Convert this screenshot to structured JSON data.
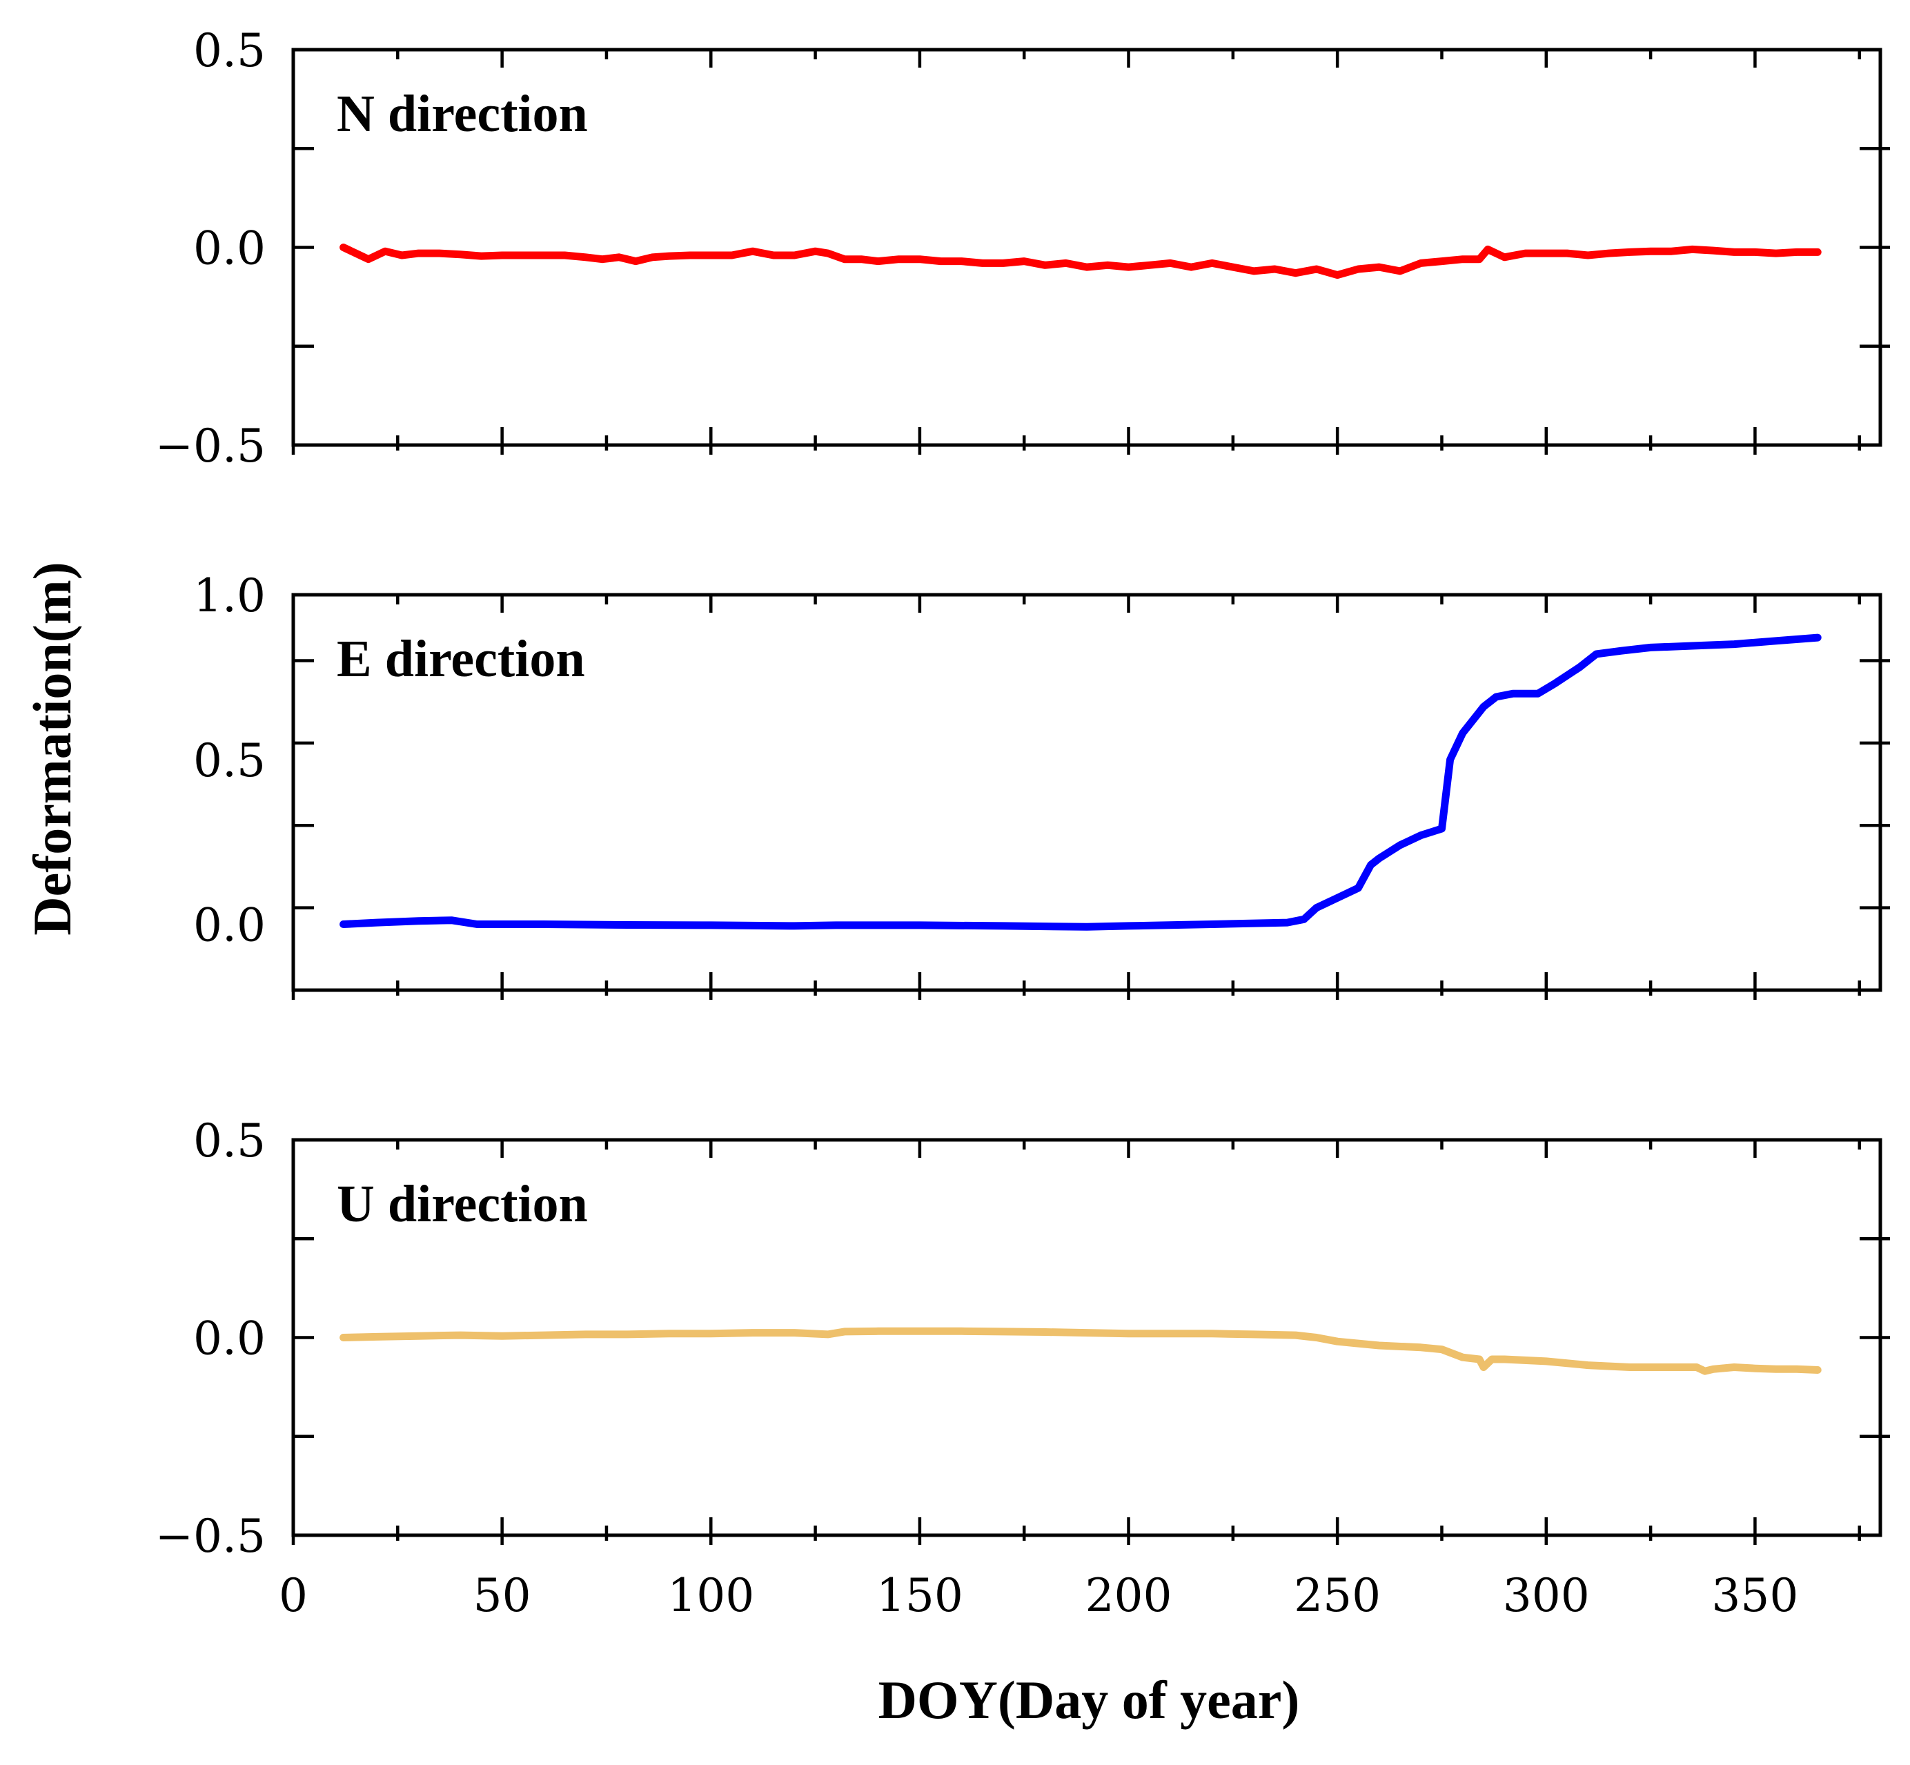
{
  "chart_data": {
    "type": "line",
    "xlabel": "DOY(Day of year)",
    "ylabel": "Deformation(m)",
    "xlim": [
      0,
      380
    ],
    "x_ticks": [
      0,
      50,
      100,
      150,
      200,
      250,
      300,
      350
    ],
    "x_tick_labels": [
      "0",
      "50",
      "100",
      "150",
      "200",
      "250",
      "300",
      "350"
    ],
    "panels": [
      {
        "id": "n",
        "label": "N direction",
        "ylim": [
          -0.5,
          0.5
        ],
        "y_ticks": [
          -0.5,
          0.0,
          0.5
        ],
        "y_tick_labels": [
          "−0.5",
          "0.0",
          "0.5"
        ],
        "color": "#ff0000",
        "x": [
          12,
          15,
          18,
          22,
          26,
          30,
          35,
          40,
          45,
          50,
          55,
          60,
          65,
          70,
          74,
          78,
          82,
          86,
          90,
          95,
          100,
          105,
          110,
          115,
          120,
          125,
          128,
          132,
          136,
          140,
          145,
          150,
          155,
          160,
          165,
          170,
          175,
          180,
          185,
          190,
          195,
          200,
          205,
          210,
          215,
          220,
          225,
          230,
          235,
          240,
          245,
          250,
          255,
          260,
          265,
          270,
          275,
          280,
          284,
          286,
          290,
          295,
          300,
          305,
          310,
          315,
          320,
          325,
          330,
          335,
          340,
          345,
          350,
          355,
          360,
          365
        ],
        "values": [
          0.0,
          -0.015,
          -0.03,
          -0.01,
          -0.02,
          -0.015,
          -0.015,
          -0.018,
          -0.022,
          -0.02,
          -0.02,
          -0.02,
          -0.02,
          -0.025,
          -0.03,
          -0.025,
          -0.035,
          -0.025,
          -0.022,
          -0.02,
          -0.02,
          -0.02,
          -0.01,
          -0.02,
          -0.02,
          -0.01,
          -0.015,
          -0.03,
          -0.03,
          -0.035,
          -0.03,
          -0.03,
          -0.035,
          -0.035,
          -0.04,
          -0.04,
          -0.035,
          -0.045,
          -0.04,
          -0.05,
          -0.045,
          -0.05,
          -0.045,
          -0.04,
          -0.05,
          -0.04,
          -0.05,
          -0.06,
          -0.055,
          -0.065,
          -0.055,
          -0.07,
          -0.055,
          -0.05,
          -0.06,
          -0.04,
          -0.035,
          -0.03,
          -0.03,
          -0.005,
          -0.025,
          -0.015,
          -0.015,
          -0.015,
          -0.02,
          -0.015,
          -0.012,
          -0.01,
          -0.01,
          -0.005,
          -0.008,
          -0.012,
          -0.012,
          -0.015,
          -0.012,
          -0.012
        ]
      },
      {
        "id": "e",
        "label": "E direction",
        "ylim": [
          -0.2,
          1.0
        ],
        "y_ticks": [
          0.0,
          0.5,
          1.0
        ],
        "y_tick_labels": [
          "0.0",
          "0.5",
          "1.0"
        ],
        "color": "#0000ff",
        "x": [
          12,
          20,
          30,
          38,
          44,
          60,
          80,
          100,
          120,
          130,
          150,
          170,
          190,
          200,
          220,
          238,
          242,
          245,
          250,
          255,
          258,
          260,
          265,
          270,
          275,
          277,
          280,
          285,
          288,
          292,
          298,
          302,
          308,
          312,
          318,
          325,
          335,
          345,
          355,
          365
        ],
        "values": [
          0.0,
          0.005,
          0.01,
          0.012,
          0.0,
          0.0,
          -0.002,
          -0.003,
          -0.005,
          -0.003,
          -0.003,
          -0.005,
          -0.008,
          -0.005,
          0.0,
          0.005,
          0.015,
          0.05,
          0.08,
          0.11,
          0.18,
          0.2,
          0.24,
          0.27,
          0.29,
          0.5,
          0.58,
          0.66,
          0.69,
          0.7,
          0.7,
          0.73,
          0.78,
          0.82,
          0.83,
          0.84,
          0.845,
          0.85,
          0.86,
          0.87
        ]
      },
      {
        "id": "u",
        "label": "U direction",
        "ylim": [
          -0.5,
          0.5
        ],
        "y_ticks": [
          -0.5,
          0.0,
          0.5
        ],
        "y_tick_labels": [
          "−0.5",
          "0.0",
          "0.5"
        ],
        "color": "#eec06b",
        "x": [
          12,
          20,
          30,
          40,
          50,
          60,
          70,
          80,
          90,
          100,
          110,
          120,
          128,
          132,
          140,
          150,
          160,
          170,
          180,
          190,
          200,
          210,
          220,
          230,
          240,
          245,
          250,
          255,
          260,
          270,
          275,
          280,
          284,
          285,
          287,
          290,
          300,
          310,
          320,
          330,
          336,
          338,
          340,
          345,
          350,
          355,
          360,
          365
        ],
        "values": [
          0.0,
          0.002,
          0.004,
          0.006,
          0.004,
          0.006,
          0.008,
          0.008,
          0.01,
          0.01,
          0.012,
          0.012,
          0.008,
          0.015,
          0.016,
          0.016,
          0.016,
          0.015,
          0.014,
          0.012,
          0.01,
          0.01,
          0.01,
          0.008,
          0.006,
          0.0,
          -0.01,
          -0.015,
          -0.02,
          -0.025,
          -0.03,
          -0.05,
          -0.055,
          -0.075,
          -0.055,
          -0.055,
          -0.06,
          -0.07,
          -0.075,
          -0.075,
          -0.075,
          -0.085,
          -0.08,
          -0.075,
          -0.078,
          -0.08,
          -0.08,
          -0.082
        ]
      }
    ]
  }
}
